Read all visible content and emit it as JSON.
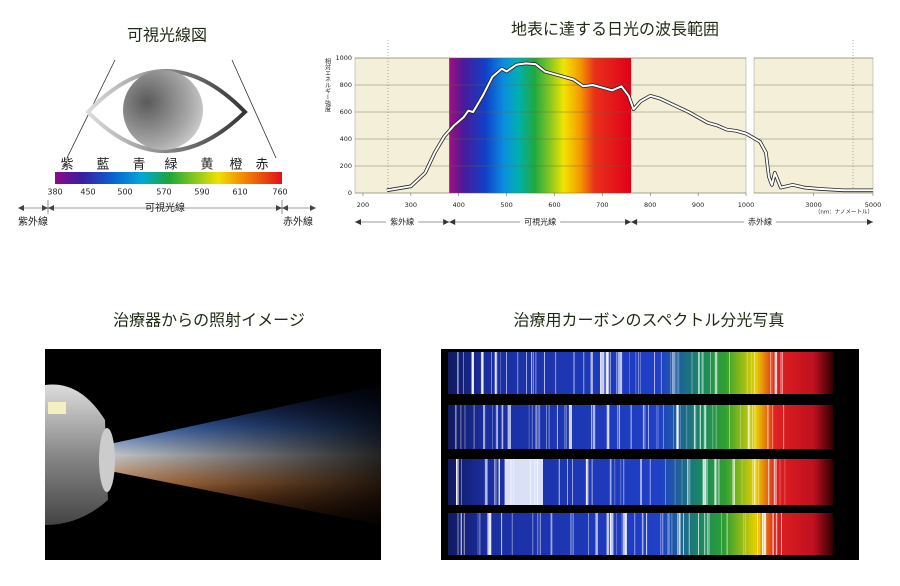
{
  "visible_light_diagram": {
    "title": "可視光線図",
    "color_names": [
      "紫",
      "藍",
      "青",
      "緑",
      "黄",
      "橙",
      "赤"
    ],
    "wavelength_ticks": [
      380,
      450,
      500,
      570,
      590,
      610,
      760
    ],
    "uv_label": "紫外線",
    "visible_label": "可視光線",
    "ir_label": "赤外線"
  },
  "chart_data": {
    "type": "line",
    "title": "地表に達する日光の波長範囲",
    "y_label": "相対エネルギー強度",
    "x_unit_label": "（nm：ナノメートル）",
    "x": [
      250,
      300,
      330,
      350,
      370,
      390,
      410,
      420,
      430,
      450,
      470,
      490,
      500,
      520,
      540,
      560,
      580,
      600,
      620,
      640,
      660,
      680,
      700,
      720,
      740,
      755,
      765,
      780,
      800,
      820,
      850,
      880,
      900,
      920,
      940,
      960,
      980,
      1000,
      1200,
      1400,
      1500,
      1600,
      1700,
      1900,
      2300,
      2700,
      3200,
      4000,
      5000
    ],
    "values": [
      20,
      50,
      150,
      300,
      420,
      500,
      560,
      610,
      600,
      720,
      860,
      920,
      900,
      950,
      960,
      955,
      900,
      880,
      860,
      840,
      790,
      800,
      780,
      760,
      790,
      720,
      620,
      680,
      720,
      700,
      650,
      600,
      560,
      520,
      500,
      470,
      460,
      440,
      380,
      300,
      120,
      60,
      150,
      40,
      60,
      40,
      30,
      20,
      20
    ],
    "xlim": [
      200,
      1000
    ],
    "xticks": [
      200,
      300,
      400,
      500,
      600,
      700,
      800,
      900,
      1000
    ],
    "x2lim": [
      1000,
      5000
    ],
    "x2ticks": [
      3000,
      5000
    ],
    "ylim": [
      0,
      1000
    ],
    "yticks": [
      0,
      200,
      400,
      600,
      800,
      1000
    ],
    "visible_range": [
      380,
      760
    ],
    "regions": {
      "uv": "紫外線",
      "visible": "可視光線",
      "ir": "赤外線"
    },
    "grid": true,
    "line_color": "#ffffff"
  },
  "photos": [
    {
      "title": "治療器からの照射イメージ"
    },
    {
      "title": "治療用カーボンのスペクトル分光写真"
    }
  ]
}
